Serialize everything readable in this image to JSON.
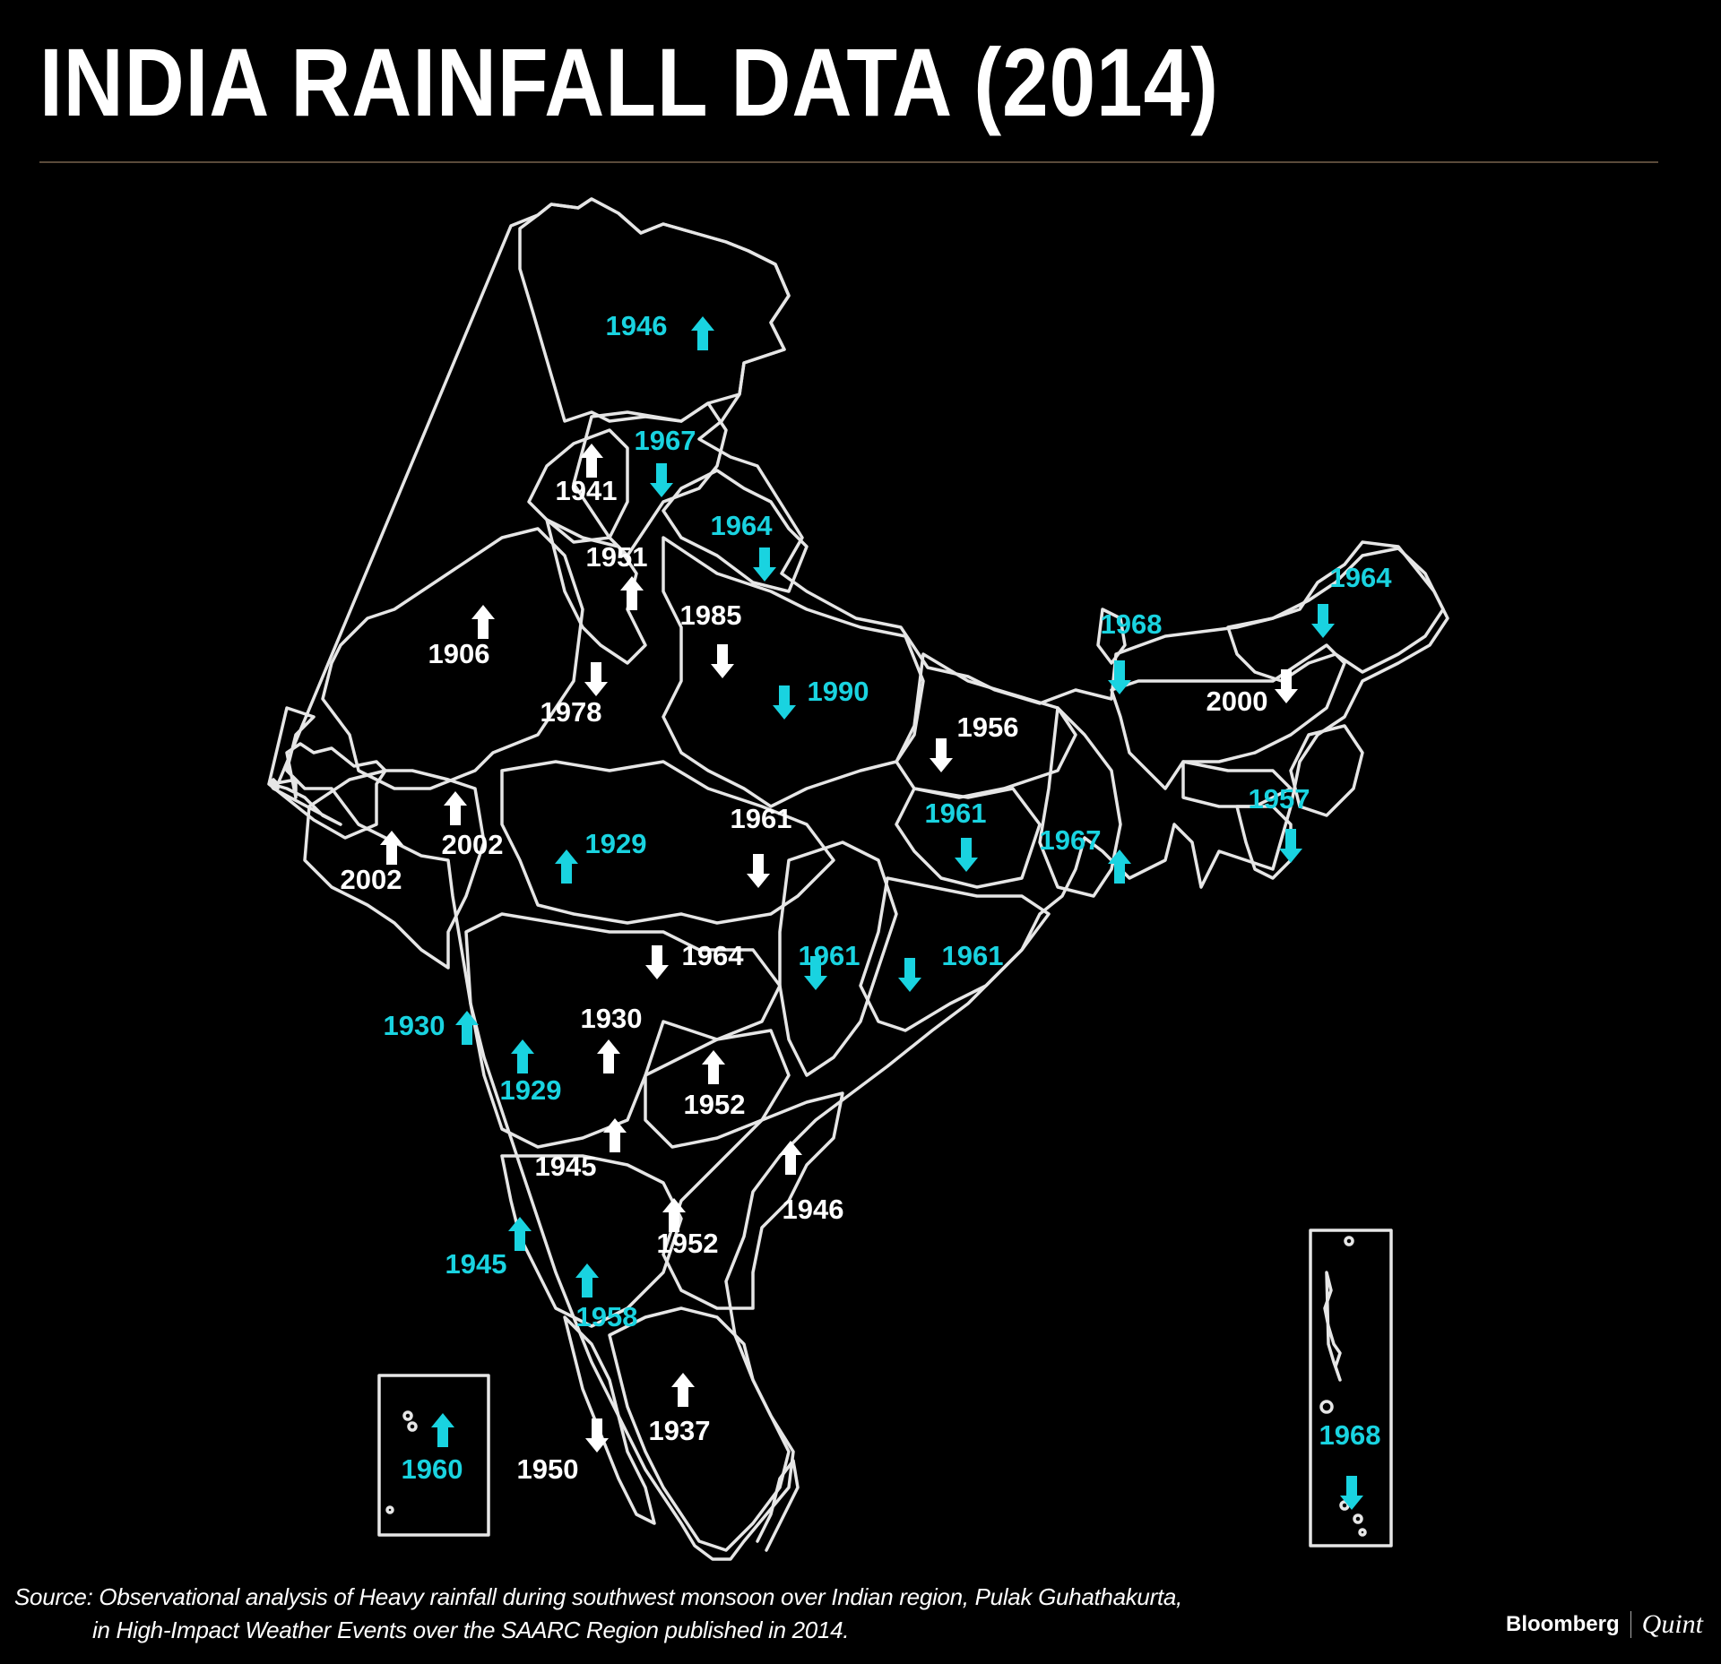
{
  "title": "INDIA RAINFALL DATA (2014)",
  "source": {
    "line1": "Source: Observational analysis of Heavy rainfall during southwest monsoon over Indian region, Pulak Guhathakurta,",
    "line2": "in High-Impact Weather Events over the SAARC Region published in 2014."
  },
  "brand": {
    "name": "Bloomberg",
    "suffix": "Quint"
  },
  "colors": {
    "background": "#000000",
    "text": "#ffffff",
    "highlight": "#19d3e0",
    "outline": "#e6e6e6"
  },
  "map_labels": [
    {
      "year": "1946",
      "trend": "up",
      "highlight": true
    },
    {
      "year": "1967",
      "trend": "down",
      "highlight": true
    },
    {
      "year": "1941",
      "trend": "up",
      "highlight": false
    },
    {
      "year": "1964",
      "trend": "down",
      "highlight": true
    },
    {
      "year": "1951",
      "trend": "up",
      "highlight": false
    },
    {
      "year": "1985",
      "trend": "down",
      "highlight": false
    },
    {
      "year": "1906",
      "trend": "up",
      "highlight": false
    },
    {
      "year": "1978",
      "trend": "down",
      "highlight": false
    },
    {
      "year": "1990",
      "trend": "down",
      "highlight": true
    },
    {
      "year": "1956",
      "trend": "down",
      "highlight": false
    },
    {
      "year": "1968",
      "trend": "down",
      "highlight": true
    },
    {
      "year": "1964",
      "trend": "down",
      "highlight": true
    },
    {
      "year": "2000",
      "trend": "down",
      "highlight": false
    },
    {
      "year": "1957",
      "trend": "down",
      "highlight": true
    },
    {
      "year": "2002",
      "trend": "up",
      "highlight": false
    },
    {
      "year": "2002",
      "trend": "up",
      "highlight": false
    },
    {
      "year": "1929",
      "trend": "up",
      "highlight": true
    },
    {
      "year": "1961",
      "trend": "down",
      "highlight": false
    },
    {
      "year": "1961",
      "trend": "down",
      "highlight": true
    },
    {
      "year": "1967",
      "trend": "up",
      "highlight": true
    },
    {
      "year": "1964",
      "trend": "down",
      "highlight": false
    },
    {
      "year": "1961",
      "trend": "down",
      "highlight": true
    },
    {
      "year": "1961",
      "trend": "down",
      "highlight": true
    },
    {
      "year": "1930",
      "trend": "up",
      "highlight": true
    },
    {
      "year": "1930",
      "trend": "up",
      "highlight": false
    },
    {
      "year": "1929",
      "trend": "up",
      "highlight": true
    },
    {
      "year": "1952",
      "trend": "up",
      "highlight": false
    },
    {
      "year": "1945",
      "trend": "up",
      "highlight": false
    },
    {
      "year": "1946",
      "trend": "up",
      "highlight": false
    },
    {
      "year": "1952",
      "trend": "up",
      "highlight": false
    },
    {
      "year": "1945",
      "trend": "up",
      "highlight": true
    },
    {
      "year": "1958",
      "trend": "up",
      "highlight": true
    },
    {
      "year": "1937",
      "trend": "up",
      "highlight": false
    },
    {
      "year": "1950",
      "trend": "down",
      "highlight": false
    },
    {
      "year": "1960",
      "trend": "up",
      "highlight": true
    },
    {
      "year": "1968",
      "trend": "down",
      "highlight": true
    }
  ]
}
